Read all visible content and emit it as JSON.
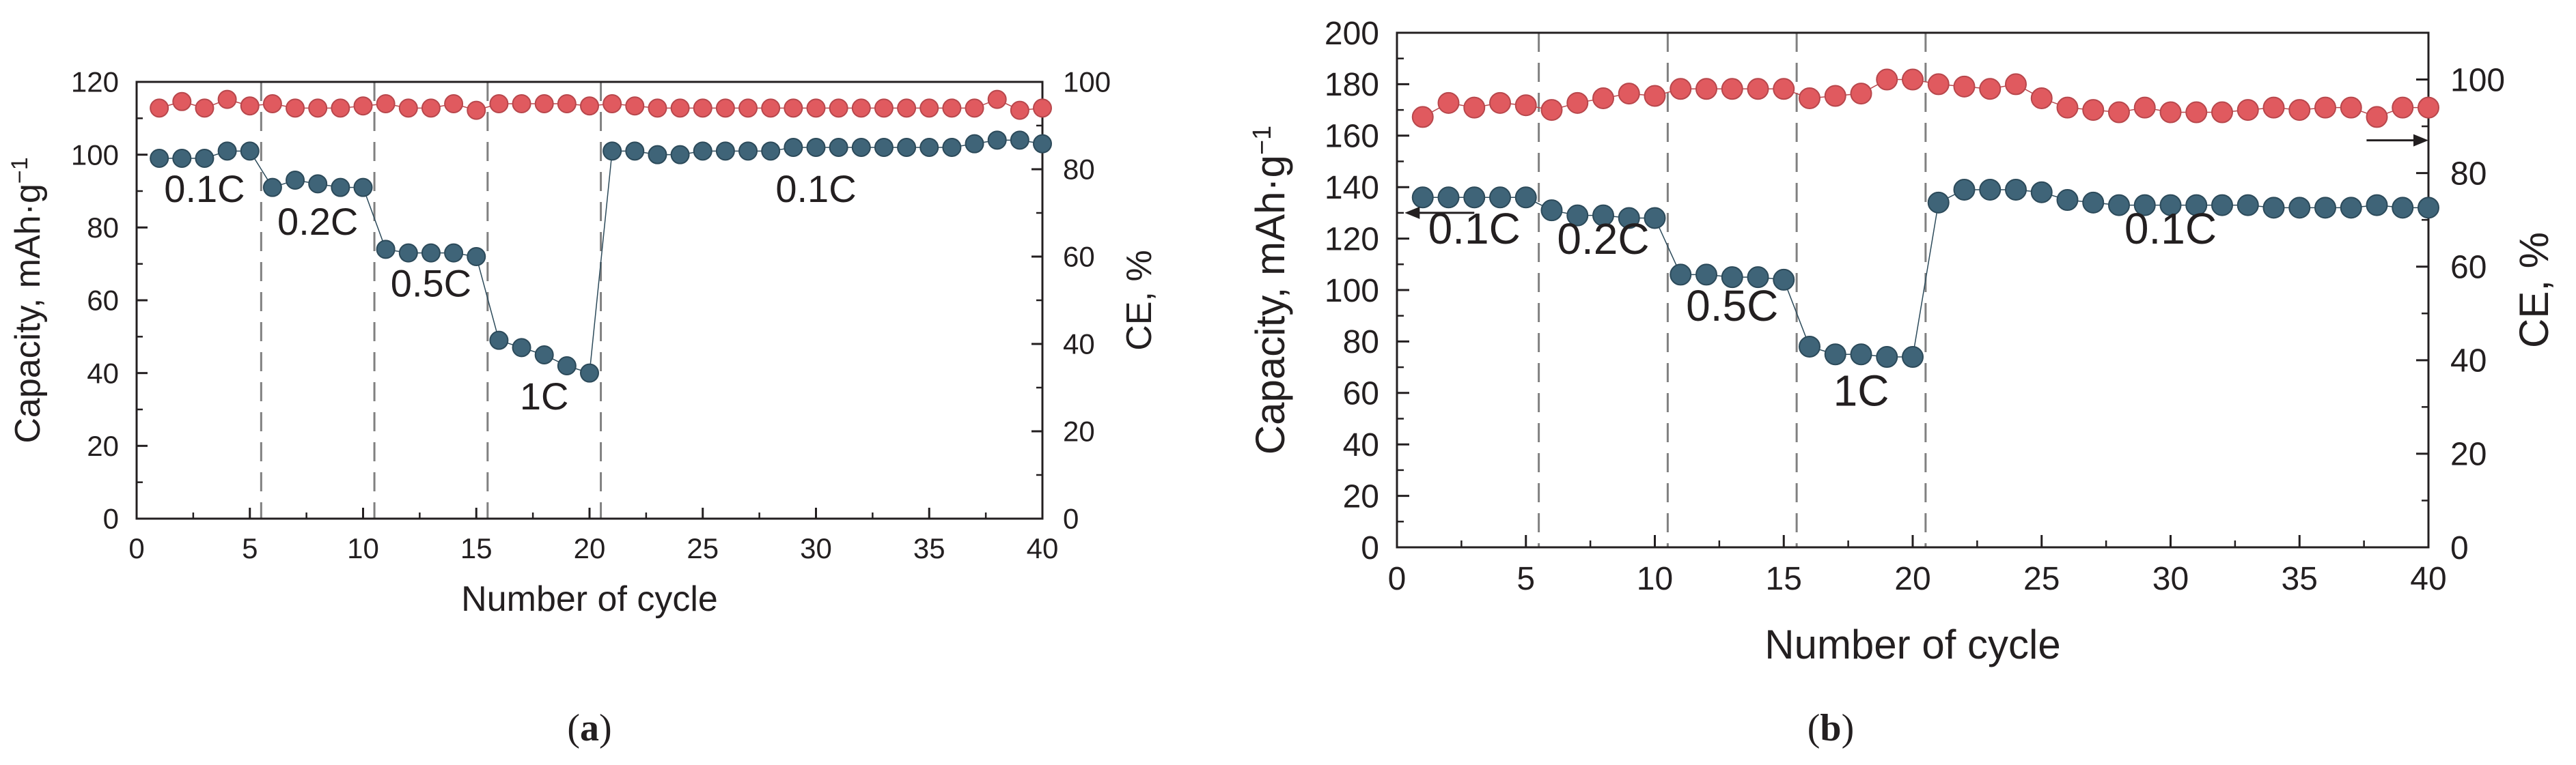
{
  "colors": {
    "capacity_marker": "#3f6478",
    "capacity_marker_stroke": "#2c4a5a",
    "ce_marker": "#e05a5f",
    "ce_marker_stroke": "#b8474c",
    "axis": "#231f20",
    "divider": "#808080"
  },
  "chart_data": [
    {
      "type": "scatter",
      "panel_label": {
        "open": "(",
        "letter": "a",
        "close": ")"
      },
      "xlabel": "Number of cycle",
      "ylabel": "Capacity, mAh·g",
      "ylabel_sup": "−1",
      "y2label": "CE, %",
      "xlim": [
        0,
        40
      ],
      "ylim": [
        0,
        120
      ],
      "y2lim": [
        0,
        100
      ],
      "x_ticks": [
        "0",
        "5",
        "10",
        "15",
        "20",
        "25",
        "30",
        "35",
        "40"
      ],
      "y_ticks": [
        "0",
        "20",
        "40",
        "60",
        "80",
        "100",
        "120"
      ],
      "y2_ticks": [
        "0",
        "20",
        "40",
        "60",
        "80",
        "100"
      ],
      "dividers": [
        5.5,
        10.5,
        15.5,
        20.5
      ],
      "rate_labels": [
        {
          "text": "0.1C",
          "x": 3.0,
          "y": 87
        },
        {
          "text": "0.2C",
          "x": 8.0,
          "y": 78
        },
        {
          "text": "0.5C",
          "x": 13.0,
          "y": 61
        },
        {
          "text": "1C",
          "x": 18.0,
          "y": 30
        },
        {
          "text": "0.1C",
          "x": 30.0,
          "y": 87
        }
      ],
      "arrows": [],
      "series": [
        {
          "name": "Capacity",
          "axis": "left",
          "x": [
            1,
            2,
            3,
            4,
            5,
            6,
            7,
            8,
            9,
            10,
            11,
            12,
            13,
            14,
            15,
            16,
            17,
            18,
            19,
            20,
            21,
            22,
            23,
            24,
            25,
            26,
            27,
            28,
            29,
            30,
            31,
            32,
            33,
            34,
            35,
            36,
            37,
            38,
            39,
            40
          ],
          "values": [
            99,
            99,
            99,
            101,
            101,
            91,
            93,
            92,
            91,
            91,
            74,
            73,
            73,
            73,
            72,
            49,
            47,
            45,
            42,
            40,
            101,
            101,
            100,
            100,
            101,
            101,
            101,
            101,
            102,
            102,
            102,
            102,
            102,
            102,
            102,
            102,
            103,
            104,
            104,
            103
          ]
        },
        {
          "name": "CE",
          "axis": "right",
          "x": [
            1,
            2,
            3,
            4,
            5,
            6,
            7,
            8,
            9,
            10,
            11,
            12,
            13,
            14,
            15,
            16,
            17,
            18,
            19,
            20,
            21,
            22,
            23,
            24,
            25,
            26,
            27,
            28,
            29,
            30,
            31,
            32,
            33,
            34,
            35,
            36,
            37,
            38,
            39,
            40
          ],
          "values": [
            94,
            95.5,
            94,
            96,
            94.5,
            95,
            94,
            94,
            94,
            94.5,
            95,
            94,
            94,
            95,
            93.5,
            95,
            95,
            95,
            95,
            94.5,
            95,
            94.5,
            94,
            94,
            94,
            94,
            94,
            94,
            94,
            94,
            94,
            94,
            94,
            94,
            94,
            94,
            94,
            96,
            93.5,
            94
          ]
        }
      ]
    },
    {
      "type": "scatter",
      "panel_label": {
        "open": "(",
        "letter": "b",
        "close": ")"
      },
      "xlabel": "Number of cycle",
      "ylabel": "Capacity, mAh·g",
      "ylabel_sup": "−1",
      "y2label": "CE, %",
      "xlim": [
        0,
        40
      ],
      "ylim": [
        0,
        200
      ],
      "y2lim": [
        0,
        110
      ],
      "x_ticks": [
        "0",
        "5",
        "10",
        "15",
        "20",
        "25",
        "30",
        "35",
        "40"
      ],
      "y_ticks": [
        "0",
        "20",
        "40",
        "60",
        "80",
        "100",
        "120",
        "140",
        "160",
        "180",
        "200"
      ],
      "y2_ticks": [
        "0",
        "20",
        "40",
        "60",
        "80",
        "100"
      ],
      "dividers": [
        5.5,
        10.5,
        15.5,
        20.5
      ],
      "rate_labels": [
        {
          "text": "0.1C",
          "x": 3.0,
          "y": 118
        },
        {
          "text": "0.2C",
          "x": 8.0,
          "y": 114
        },
        {
          "text": "0.5C",
          "x": 13.0,
          "y": 88
        },
        {
          "text": "1C",
          "x": 18.0,
          "y": 55
        },
        {
          "text": "0.1C",
          "x": 30.0,
          "y": 118
        }
      ],
      "arrows": [
        {
          "axis": "left",
          "x_from": 3.0,
          "x_to": 0.3,
          "y": 130
        },
        {
          "axis": "right",
          "x_from": 37.6,
          "x_to": 40.0,
          "y": 87
        }
      ],
      "series": [
        {
          "name": "Capacity",
          "axis": "left",
          "x": [
            1,
            2,
            3,
            4,
            5,
            6,
            7,
            8,
            9,
            10,
            11,
            12,
            13,
            14,
            15,
            16,
            17,
            18,
            19,
            20,
            21,
            22,
            23,
            24,
            25,
            26,
            27,
            28,
            29,
            30,
            31,
            32,
            33,
            34,
            35,
            36,
            37,
            38,
            39,
            40
          ],
          "values": [
            136,
            136,
            136,
            136,
            136,
            131,
            129,
            129,
            128,
            128,
            106,
            106,
            105,
            105,
            104,
            78,
            75,
            75,
            74,
            74,
            134,
            139,
            139,
            139,
            138,
            135,
            134,
            133,
            133,
            133,
            133,
            133,
            133,
            132,
            132,
            132,
            132,
            133,
            132,
            132
          ],
          "markers": [
            {
              "x": 1,
              "y": 136
            },
            {
              "x": 2,
              "y": 136
            },
            {
              "x": 3,
              "y": 136
            },
            {
              "x": 4,
              "y": 136
            },
            {
              "x": 5,
              "y": 136
            },
            {
              "x": 6,
              "y": 131
            },
            {
              "x": 7,
              "y": 129
            },
            {
              "x": 8,
              "y": 129
            },
            {
              "x": 9,
              "y": 128
            },
            {
              "x": 10,
              "y": 128
            },
            {
              "x": 11,
              "y": 106
            },
            {
              "x": 12,
              "y": 106
            },
            {
              "x": 13,
              "y": 105
            },
            {
              "x": 14,
              "y": 105
            },
            {
              "x": 15,
              "y": 104
            },
            {
              "x": 16,
              "y": 78
            },
            {
              "x": 17,
              "y": 75
            },
            {
              "x": 18,
              "y": 75
            },
            {
              "x": 19,
              "y": 74
            },
            {
              "x": 20,
              "y": 74
            }
          ]
        },
        {
          "name": "CE",
          "axis": "right",
          "x": [
            1,
            2,
            3,
            4,
            5,
            6,
            7,
            8,
            9,
            10,
            11,
            12,
            13,
            14,
            15,
            16,
            17,
            18,
            19,
            20,
            21,
            22,
            23,
            24,
            25,
            26,
            27,
            28,
            29,
            30,
            31,
            32,
            33,
            34,
            35,
            36,
            37,
            38,
            39,
            40
          ],
          "values": [
            92,
            95,
            94,
            95,
            94.5,
            93.5,
            95,
            96,
            97,
            96.5,
            98,
            98,
            98,
            98,
            98,
            96,
            96.5,
            97,
            100,
            100,
            99,
            98.5,
            98,
            99,
            96,
            94,
            93.5,
            93,
            94,
            93,
            93,
            93,
            93.5,
            94,
            93.5,
            94,
            94,
            92,
            94,
            94
          ]
        }
      ]
    }
  ]
}
